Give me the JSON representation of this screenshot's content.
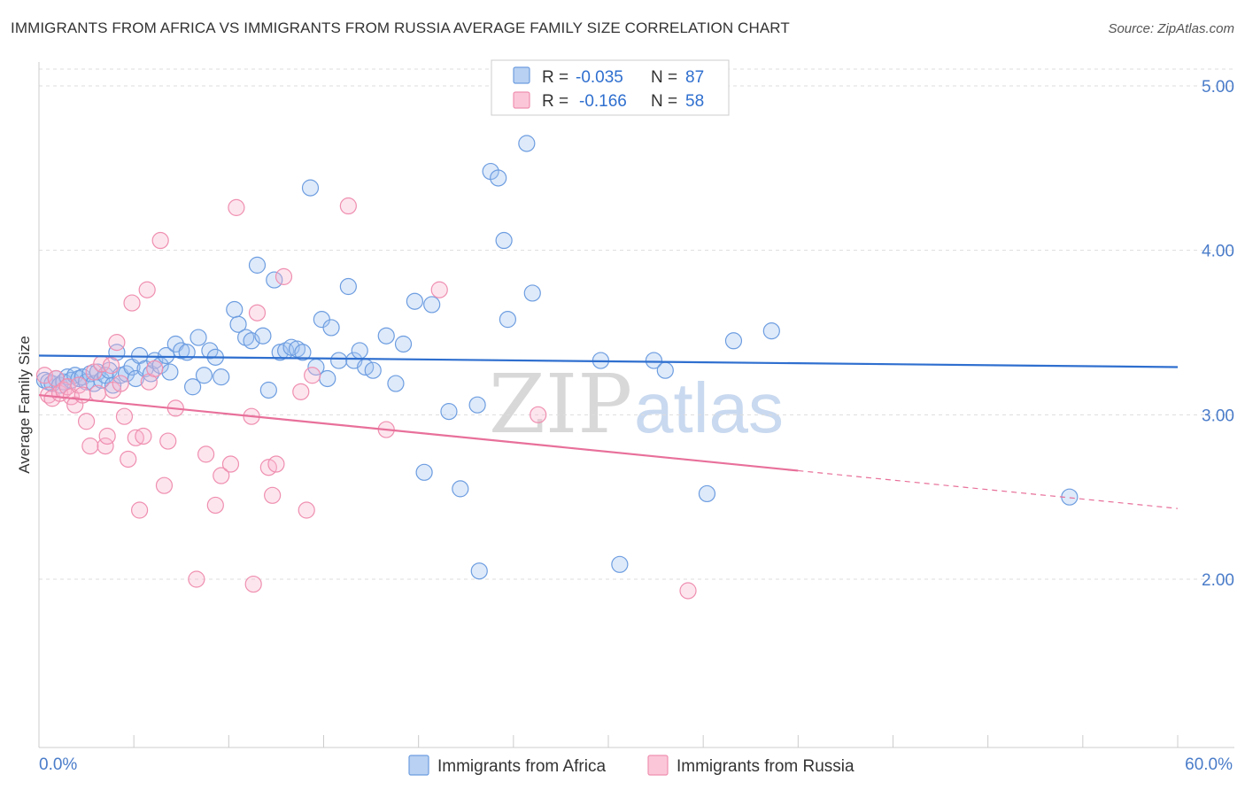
{
  "header": {
    "title": "IMMIGRANTS FROM AFRICA VS IMMIGRANTS FROM RUSSIA AVERAGE FAMILY SIZE CORRELATION CHART",
    "source": "Source: ZipAtlas.com"
  },
  "watermark": {
    "zip": "ZIP",
    "atlas": "atlas"
  },
  "legend": {
    "r_label": "R =",
    "n_label": "N =",
    "entries": [
      {
        "r": "-0.035",
        "n": "87",
        "color": "#6d9de0"
      },
      {
        "r": "-0.166",
        "n": "58",
        "color": "#ef8fb0"
      }
    ]
  },
  "bottom_legend": [
    "Immigrants from Africa",
    "Immigrants from Russia"
  ],
  "chart_data": {
    "type": "scatter",
    "title": "IMMIGRANTS FROM AFRICA VS IMMIGRANTS FROM RUSSIA AVERAGE FAMILY SIZE CORRELATION CHART",
    "xlabel": "",
    "ylabel": "Average Family Size",
    "xlim": [
      0,
      60
    ],
    "ylim": [
      1.0,
      5.1
    ],
    "x_tick_labels": [
      "0.0%",
      "60.0%"
    ],
    "y_ticks": [
      2,
      3,
      4,
      5
    ],
    "y_tick_labels": [
      "2.00",
      "3.00",
      "4.00",
      "5.00"
    ],
    "grid": true,
    "series": [
      {
        "name": "Immigrants from Africa",
        "color": "#6d9de0",
        "r": -0.035,
        "n": 87,
        "trend": {
          "x0": 0.0,
          "y0": 3.36,
          "x1": 60.0,
          "y1": 3.29
        },
        "points": [
          [
            0.3,
            3.21
          ],
          [
            0.5,
            3.2
          ],
          [
            0.7,
            3.19
          ],
          [
            0.9,
            3.22
          ],
          [
            1.1,
            3.18
          ],
          [
            1.3,
            3.2
          ],
          [
            1.5,
            3.23
          ],
          [
            1.7,
            3.21
          ],
          [
            1.9,
            3.24
          ],
          [
            2.1,
            3.22
          ],
          [
            2.3,
            3.23
          ],
          [
            2.5,
            3.2
          ],
          [
            2.7,
            3.25
          ],
          [
            2.9,
            3.19
          ],
          [
            3.1,
            3.26
          ],
          [
            3.3,
            3.21
          ],
          [
            3.5,
            3.24
          ],
          [
            3.7,
            3.27
          ],
          [
            3.9,
            3.18
          ],
          [
            4.1,
            3.38
          ],
          [
            4.3,
            3.24
          ],
          [
            4.6,
            3.25
          ],
          [
            4.9,
            3.29
          ],
          [
            5.1,
            3.22
          ],
          [
            5.3,
            3.36
          ],
          [
            5.6,
            3.28
          ],
          [
            5.9,
            3.25
          ],
          [
            6.1,
            3.33
          ],
          [
            6.4,
            3.3
          ],
          [
            6.7,
            3.36
          ],
          [
            6.9,
            3.26
          ],
          [
            7.2,
            3.43
          ],
          [
            7.5,
            3.39
          ],
          [
            7.8,
            3.38
          ],
          [
            8.1,
            3.17
          ],
          [
            8.4,
            3.47
          ],
          [
            8.7,
            3.24
          ],
          [
            9.0,
            3.39
          ],
          [
            9.3,
            3.35
          ],
          [
            9.6,
            3.23
          ],
          [
            10.3,
            3.64
          ],
          [
            10.5,
            3.55
          ],
          [
            10.9,
            3.47
          ],
          [
            11.2,
            3.45
          ],
          [
            11.5,
            3.91
          ],
          [
            11.8,
            3.48
          ],
          [
            12.1,
            3.15
          ],
          [
            12.4,
            3.82
          ],
          [
            12.7,
            3.38
          ],
          [
            13.0,
            3.39
          ],
          [
            13.3,
            3.41
          ],
          [
            13.6,
            3.4
          ],
          [
            13.9,
            3.38
          ],
          [
            14.3,
            4.38
          ],
          [
            14.6,
            3.29
          ],
          [
            14.9,
            3.58
          ],
          [
            15.2,
            3.22
          ],
          [
            15.4,
            3.53
          ],
          [
            15.8,
            3.33
          ],
          [
            16.3,
            3.78
          ],
          [
            16.6,
            3.33
          ],
          [
            16.9,
            3.39
          ],
          [
            17.2,
            3.29
          ],
          [
            17.6,
            3.27
          ],
          [
            18.3,
            3.48
          ],
          [
            18.8,
            3.19
          ],
          [
            19.2,
            3.43
          ],
          [
            19.8,
            3.69
          ],
          [
            20.3,
            2.65
          ],
          [
            20.7,
            3.67
          ],
          [
            21.6,
            3.02
          ],
          [
            22.2,
            2.55
          ],
          [
            23.1,
            3.06
          ],
          [
            23.2,
            2.05
          ],
          [
            23.8,
            4.48
          ],
          [
            24.2,
            4.44
          ],
          [
            24.5,
            4.06
          ],
          [
            24.7,
            3.58
          ],
          [
            25.7,
            4.65
          ],
          [
            26.0,
            3.74
          ],
          [
            29.6,
            3.33
          ],
          [
            30.6,
            2.09
          ],
          [
            32.4,
            3.33
          ],
          [
            33.0,
            3.27
          ],
          [
            35.2,
            2.52
          ],
          [
            36.6,
            3.45
          ],
          [
            38.6,
            3.51
          ],
          [
            54.3,
            2.5
          ]
        ]
      },
      {
        "name": "Immigrants from Russia",
        "color": "#ef8fb0",
        "r": -0.166,
        "n": 58,
        "trend": {
          "x0": 0.0,
          "y0": 3.12,
          "x1": 40.0,
          "y1": 2.66,
          "dashed_to": {
            "x": 60.0,
            "y": 2.43
          }
        },
        "points": [
          [
            0.3,
            3.24
          ],
          [
            0.5,
            3.12
          ],
          [
            0.7,
            3.1
          ],
          [
            0.9,
            3.22
          ],
          [
            1.1,
            3.13
          ],
          [
            1.3,
            3.15
          ],
          [
            1.5,
            3.17
          ],
          [
            1.7,
            3.11
          ],
          [
            1.9,
            3.06
          ],
          [
            2.1,
            3.18
          ],
          [
            2.3,
            3.12
          ],
          [
            2.5,
            2.96
          ],
          [
            2.7,
            2.81
          ],
          [
            2.9,
            3.26
          ],
          [
            3.1,
            3.13
          ],
          [
            3.3,
            3.31
          ],
          [
            3.5,
            2.81
          ],
          [
            3.6,
            2.87
          ],
          [
            3.8,
            3.3
          ],
          [
            3.9,
            3.15
          ],
          [
            4.1,
            3.44
          ],
          [
            4.3,
            3.19
          ],
          [
            4.5,
            2.99
          ],
          [
            4.7,
            2.73
          ],
          [
            4.9,
            3.68
          ],
          [
            5.1,
            2.86
          ],
          [
            5.3,
            2.42
          ],
          [
            5.5,
            2.87
          ],
          [
            5.7,
            3.76
          ],
          [
            5.8,
            3.2
          ],
          [
            6.1,
            3.28
          ],
          [
            6.4,
            4.06
          ],
          [
            6.6,
            2.57
          ],
          [
            6.8,
            2.84
          ],
          [
            7.2,
            3.04
          ],
          [
            8.3,
            2.0
          ],
          [
            8.8,
            2.76
          ],
          [
            9.3,
            2.45
          ],
          [
            9.6,
            2.63
          ],
          [
            10.1,
            2.7
          ],
          [
            10.4,
            4.26
          ],
          [
            11.2,
            2.99
          ],
          [
            11.3,
            1.97
          ],
          [
            11.5,
            3.62
          ],
          [
            12.1,
            2.68
          ],
          [
            12.3,
            2.51
          ],
          [
            12.5,
            2.7
          ],
          [
            12.9,
            3.84
          ],
          [
            13.8,
            3.14
          ],
          [
            14.1,
            2.42
          ],
          [
            14.4,
            3.24
          ],
          [
            16.3,
            4.27
          ],
          [
            18.3,
            2.91
          ],
          [
            21.1,
            3.76
          ],
          [
            26.3,
            3.0
          ],
          [
            34.2,
            1.93
          ]
        ]
      }
    ]
  }
}
